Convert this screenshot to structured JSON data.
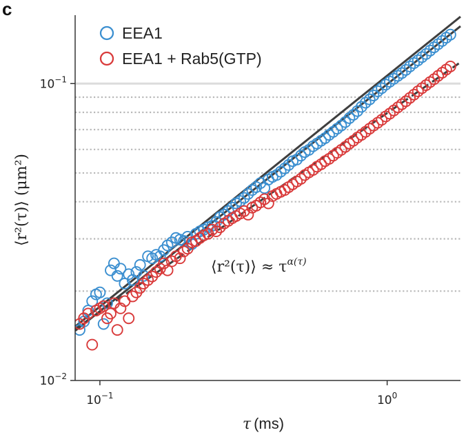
{
  "chart_data": {
    "type": "scatter",
    "panel_label": "c",
    "xlabel_symbol": "τ",
    "xlabel_unit": "(ms)",
    "ylabel_text": "⟨r²(τ)⟩ (μm²)",
    "x_scale": "log",
    "y_scale": "log",
    "xlim": [
      0.082,
      1.8
    ],
    "ylim": [
      0.01,
      0.17
    ],
    "x_ticks": [
      {
        "value": 0.1,
        "base": "10",
        "exp": "−1"
      },
      {
        "value": 1,
        "base": "10",
        "exp": "0"
      }
    ],
    "y_ticks": [
      {
        "value": 0.01,
        "base": "10",
        "exp": "−2"
      },
      {
        "value": 0.1,
        "base": "10",
        "exp": "−1"
      }
    ],
    "grid": {
      "major_y": [
        0.1
      ],
      "minor_y": [
        0.02,
        0.03,
        0.04,
        0.05,
        0.06,
        0.07,
        0.08,
        0.09
      ],
      "minor_style": "dotted"
    },
    "legend": {
      "placement": "top-left",
      "entries": [
        "EEA1",
        "EEA1 + Rab5(GTP)"
      ]
    },
    "annotation": {
      "lhs": "⟨r²(τ)⟩ ≈ τ",
      "exponent": "α(τ)",
      "at": [
        0.45,
        0.0245
      ]
    },
    "series": [
      {
        "name": "EEA1",
        "color": "#3b8fd0",
        "marker": "open-circle",
        "x": [
          0.085,
          0.088,
          0.091,
          0.094,
          0.097,
          0.1,
          0.103,
          0.106,
          0.109,
          0.112,
          0.115,
          0.118,
          0.122,
          0.126,
          0.13,
          0.134,
          0.138,
          0.142,
          0.147,
          0.152,
          0.157,
          0.162,
          0.167,
          0.172,
          0.178,
          0.184,
          0.19,
          0.196,
          0.202,
          0.209,
          0.216,
          0.223,
          0.23,
          0.238,
          0.246,
          0.254,
          0.262,
          0.271,
          0.28,
          0.289,
          0.298,
          0.308,
          0.318,
          0.328,
          0.339,
          0.35,
          0.362,
          0.374,
          0.386,
          0.399,
          0.412,
          0.426,
          0.44,
          0.454,
          0.469,
          0.485,
          0.501,
          0.517,
          0.534,
          0.552,
          0.57,
          0.589,
          0.608,
          0.628,
          0.649,
          0.67,
          0.692,
          0.715,
          0.739,
          0.763,
          0.788,
          0.814,
          0.841,
          0.869,
          0.897,
          0.927,
          0.957,
          0.989,
          1.021,
          1.055,
          1.09,
          1.125,
          1.162,
          1.2,
          1.24,
          1.28,
          1.322,
          1.366,
          1.411,
          1.457,
          1.505,
          1.555,
          1.606,
          1.66
        ],
        "y": [
          0.0148,
          0.0158,
          0.0172,
          0.0185,
          0.0195,
          0.0198,
          0.0155,
          0.0182,
          0.0235,
          0.0248,
          0.0225,
          0.0238,
          0.0212,
          0.0228,
          0.0218,
          0.0232,
          0.0245,
          0.0225,
          0.0262,
          0.0258,
          0.0265,
          0.0262,
          0.0275,
          0.0285,
          0.0292,
          0.0302,
          0.0298,
          0.0295,
          0.0305,
          0.0288,
          0.0312,
          0.0318,
          0.0322,
          0.0328,
          0.0332,
          0.0342,
          0.0355,
          0.0362,
          0.0372,
          0.0382,
          0.0395,
          0.0402,
          0.0412,
          0.0425,
          0.0438,
          0.0448,
          0.0462,
          0.0445,
          0.0475,
          0.0485,
          0.0492,
          0.0505,
          0.0518,
          0.0532,
          0.0548,
          0.0555,
          0.0572,
          0.0588,
          0.0598,
          0.0615,
          0.0628,
          0.0642,
          0.0655,
          0.0672,
          0.0688,
          0.0705,
          0.0722,
          0.0742,
          0.0765,
          0.0785,
          0.0808,
          0.0835,
          0.0862,
          0.0885,
          0.0912,
          0.0942,
          0.0965,
          0.0992,
          0.1015,
          0.1038,
          0.1062,
          0.1085,
          0.1112,
          0.1142,
          0.1172,
          0.1198,
          0.1228,
          0.1258,
          0.1292,
          0.1325,
          0.1358,
          0.1392,
          0.1428,
          0.1462
        ]
      },
      {
        "name": "EEA1 + Rab5(GTP)",
        "color": "#d93a3a",
        "marker": "open-circle",
        "x": [
          0.085,
          0.088,
          0.091,
          0.094,
          0.097,
          0.1,
          0.103,
          0.106,
          0.109,
          0.112,
          0.115,
          0.118,
          0.122,
          0.126,
          0.13,
          0.134,
          0.138,
          0.142,
          0.147,
          0.152,
          0.157,
          0.162,
          0.167,
          0.172,
          0.178,
          0.184,
          0.19,
          0.196,
          0.202,
          0.209,
          0.216,
          0.223,
          0.23,
          0.238,
          0.246,
          0.254,
          0.262,
          0.271,
          0.28,
          0.289,
          0.298,
          0.308,
          0.318,
          0.328,
          0.339,
          0.35,
          0.362,
          0.374,
          0.386,
          0.399,
          0.412,
          0.426,
          0.44,
          0.454,
          0.469,
          0.485,
          0.501,
          0.517,
          0.534,
          0.552,
          0.57,
          0.589,
          0.608,
          0.628,
          0.649,
          0.67,
          0.692,
          0.715,
          0.739,
          0.763,
          0.788,
          0.814,
          0.841,
          0.869,
          0.897,
          0.927,
          0.957,
          0.989,
          1.021,
          1.055,
          1.09,
          1.125,
          1.162,
          1.2,
          1.24,
          1.28,
          1.322,
          1.366,
          1.411,
          1.457,
          1.505,
          1.555,
          1.606,
          1.66
        ],
        "y": [
          0.0155,
          0.0162,
          0.0168,
          0.0132,
          0.0172,
          0.0175,
          0.0178,
          0.0162,
          0.0168,
          0.0182,
          0.0148,
          0.0175,
          0.0185,
          0.0162,
          0.0192,
          0.0198,
          0.0205,
          0.0212,
          0.0218,
          0.0224,
          0.0232,
          0.0238,
          0.0248,
          0.0235,
          0.0252,
          0.0262,
          0.0258,
          0.0272,
          0.0278,
          0.0292,
          0.0295,
          0.0302,
          0.0308,
          0.0312,
          0.0322,
          0.0318,
          0.0328,
          0.0338,
          0.0345,
          0.0352,
          0.0358,
          0.0365,
          0.0372,
          0.0362,
          0.0382,
          0.0388,
          0.0398,
          0.0408,
          0.0395,
          0.0418,
          0.0425,
          0.0432,
          0.0438,
          0.0448,
          0.0458,
          0.0468,
          0.0478,
          0.0492,
          0.0502,
          0.0512,
          0.0525,
          0.0535,
          0.0548,
          0.0558,
          0.0572,
          0.0585,
          0.0598,
          0.0612,
          0.0628,
          0.0642,
          0.0658,
          0.0672,
          0.0688,
          0.0705,
          0.0722,
          0.0738,
          0.0755,
          0.0775,
          0.0792,
          0.0812,
          0.0832,
          0.0852,
          0.0872,
          0.0895,
          0.0918,
          0.0942,
          0.0965,
          0.0988,
          0.1012,
          0.1035,
          0.1062,
          0.1088,
          0.1115,
          0.1142
        ]
      }
    ],
    "fit_lines": [
      {
        "style": "solid",
        "color": "#3f3f3f",
        "points": [
          [
            0.082,
            0.0152
          ],
          [
            1.8,
            0.168
          ]
        ]
      },
      {
        "style": "solid",
        "color": "#3f3f3f",
        "points": [
          [
            0.082,
            0.0147
          ],
          [
            1.8,
            0.156
          ]
        ]
      },
      {
        "style": "dashed",
        "color": "#3f3f3f",
        "points": [
          [
            0.082,
            0.0149
          ],
          [
            1.8,
            0.118
          ]
        ]
      }
    ]
  }
}
